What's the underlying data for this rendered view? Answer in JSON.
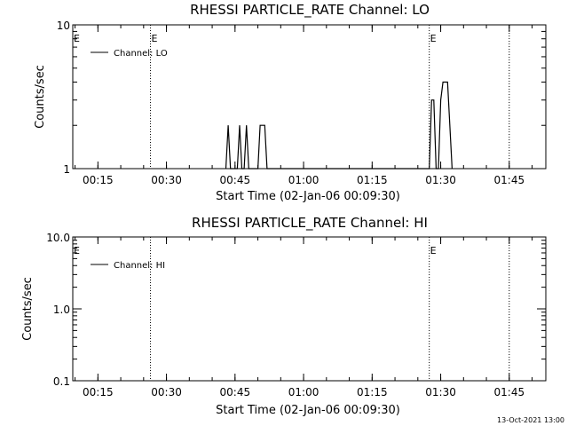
{
  "footer": {
    "timestamp": "13-Oct-2021 13:00"
  },
  "chart_data": [
    {
      "type": "line",
      "title": "RHESSI PARTICLE_RATE Channel: LO",
      "xlabel": "Start Time (02-Jan-06 00:09:30)",
      "ylabel": "Counts/sec",
      "ylog": true,
      "ylim": [
        1,
        10
      ],
      "yticks": [
        {
          "value": 1,
          "label": "1"
        },
        {
          "value": 10,
          "label": "10"
        }
      ],
      "xlim": [
        "00:09:30",
        "01:53:00"
      ],
      "xticks": [
        "00:15",
        "00:30",
        "00:45",
        "01:00",
        "01:15",
        "01:30",
        "01:45"
      ],
      "legend": {
        "label": "Channel: LO",
        "position": "top-left"
      },
      "vlines": [
        {
          "time": "00:26:30",
          "label": "E"
        },
        {
          "time": "01:27:30",
          "label": "E"
        },
        {
          "time": "01:45:00",
          "label": ""
        }
      ],
      "edge_labels": [
        {
          "time": "00:09:30",
          "label": "E"
        }
      ],
      "series": [
        {
          "points": [
            [
              "00:43:00",
              1
            ],
            [
              "00:43:30",
              2
            ],
            [
              "00:44:00",
              1
            ],
            [
              "00:45:30",
              1
            ],
            [
              "00:46:00",
              2
            ],
            [
              "00:46:30",
              1
            ],
            [
              "00:47:00",
              1
            ],
            [
              "00:47:30",
              2
            ],
            [
              "00:48:00",
              1
            ],
            [
              "00:50:00",
              1
            ],
            [
              "00:50:30",
              2
            ],
            [
              "00:51:30",
              2
            ],
            [
              "00:52:00",
              1
            ],
            [
              "01:27:30",
              1
            ],
            [
              "01:28:00",
              3
            ],
            [
              "01:28:30",
              3
            ],
            [
              "01:29:00",
              1
            ],
            [
              "01:29:30",
              1
            ],
            [
              "01:30:00",
              3
            ],
            [
              "01:30:30",
              4
            ],
            [
              "01:31:30",
              4
            ],
            [
              "01:32:30",
              1
            ]
          ]
        }
      ]
    },
    {
      "type": "line",
      "title": "RHESSI PARTICLE_RATE Channel: HI",
      "xlabel": "Start Time (02-Jan-06 00:09:30)",
      "ylabel": "Counts/sec",
      "ylog": true,
      "ylim": [
        0.1,
        10
      ],
      "yticks": [
        {
          "value": 0.1,
          "label": "0.1"
        },
        {
          "value": 1,
          "label": "1.0"
        },
        {
          "value": 10,
          "label": "10.0"
        }
      ],
      "xlim": [
        "00:09:30",
        "01:53:00"
      ],
      "xticks": [
        "00:15",
        "00:30",
        "00:45",
        "01:00",
        "01:15",
        "01:30",
        "01:45"
      ],
      "legend": {
        "label": "Channel: HI",
        "position": "top-left"
      },
      "vlines": [
        {
          "time": "00:26:30",
          "label": ""
        },
        {
          "time": "01:27:30",
          "label": "E"
        },
        {
          "time": "01:45:00",
          "label": ""
        }
      ],
      "edge_labels": [
        {
          "time": "00:09:30",
          "label": "E"
        }
      ],
      "series": [
        {
          "points": []
        }
      ]
    }
  ]
}
